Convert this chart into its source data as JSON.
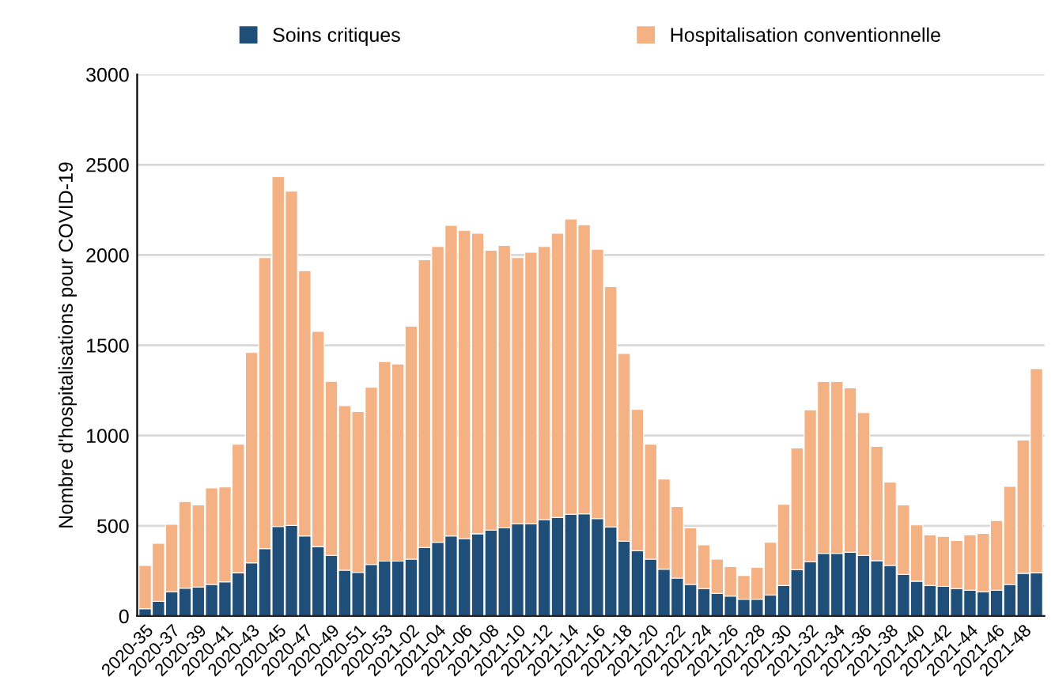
{
  "chart_data": {
    "type": "bar",
    "stacked": true,
    "ylabel": "Nombre d'hospitalisations pour COVID-19",
    "categories": [
      "2020-35",
      null,
      "2020-37",
      null,
      "2020-39",
      null,
      "2020-41",
      null,
      "2020-43",
      null,
      "2020-45",
      null,
      "2020-47",
      null,
      "2020-49",
      null,
      "2020-51",
      null,
      "2020-53",
      null,
      "2021-02",
      null,
      "2021-04",
      null,
      "2021-06",
      null,
      "2021-08",
      null,
      "2021-10",
      null,
      "2021-12",
      null,
      "2021-14",
      null,
      "2021-16",
      null,
      "2021-18",
      null,
      "2021-20",
      null,
      "2021-22",
      null,
      "2021-24",
      null,
      "2021-26",
      null,
      "2021-28",
      null,
      "2021-30",
      null,
      "2021-32",
      null,
      "2021-34",
      null,
      "2021-36",
      null,
      "2021-38",
      null,
      "2021-40",
      null,
      "2021-42",
      null,
      "2021-44",
      null,
      "2021-46",
      null,
      "2021-48",
      null
    ],
    "series": [
      {
        "name": "Soins critiques",
        "color": "#1f4e79",
        "values": [
          41,
          82,
          134,
          155,
          161,
          175,
          190,
          240,
          295,
          374,
          496,
          502,
          444,
          385,
          336,
          254,
          242,
          286,
          304,
          304,
          315,
          380,
          409,
          444,
          429,
          456,
          476,
          488,
          511,
          511,
          534,
          546,
          564,
          566,
          540,
          493,
          415,
          362,
          315,
          260,
          210,
          175,
          152,
          126,
          111,
          93,
          93,
          117,
          169,
          257,
          301,
          347,
          347,
          353,
          336,
          307,
          280,
          231,
          193,
          169,
          164,
          152,
          143,
          134,
          143,
          175,
          237,
          240
        ]
      },
      {
        "name": "Hospitalisation conventionnelle",
        "color": "#f4b183",
        "values": [
          239,
          321,
          374,
          479,
          455,
          535,
          525,
          712,
          1165,
          1612,
          1939,
          1852,
          1469,
          1192,
          964,
          911,
          891,
          981,
          1106,
          1092,
          1291,
          1594,
          1638,
          1720,
          1708,
          1664,
          1550,
          1565,
          1475,
          1504,
          1513,
          1574,
          1635,
          1601,
          1492,
          1332,
          1039,
          783,
          637,
          499,
          397,
          313,
          242,
          189,
          163,
          132,
          176,
          292,
          450,
          674,
          841,
          952,
          952,
          911,
          791,
          633,
          462,
          385,
          312,
          281,
          277,
          266,
          307,
          324,
          386,
          543,
          738,
          1130
        ]
      }
    ],
    "ylim": [
      0,
      3000
    ],
    "yticks": [
      0,
      500,
      1000,
      1500,
      2000,
      2500,
      3000
    ],
    "grid": "y",
    "legend": "top"
  }
}
